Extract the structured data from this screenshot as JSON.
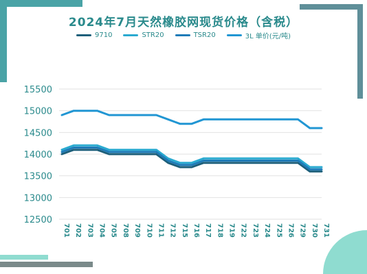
{
  "chart_data": {
    "type": "line",
    "title": "2024年7月天然橡胶网现货价格（含税）",
    "categories": [
      "701",
      "702",
      "703",
      "704",
      "705",
      "708",
      "709",
      "710",
      "711",
      "712",
      "715",
      "716",
      "717",
      "718",
      "719",
      "722",
      "723",
      "724",
      "725",
      "726",
      "729",
      "730",
      "731"
    ],
    "ylim": [
      12500,
      15500
    ],
    "yticks": [
      12500,
      13000,
      13500,
      14000,
      14500,
      15000,
      15500
    ],
    "grid": true,
    "legend_position": "top",
    "series": [
      {
        "name": "9710",
        "color": "#1d5f7a",
        "values": [
          14000,
          14100,
          14100,
          14100,
          14000,
          14000,
          14000,
          14000,
          14000,
          13800,
          13700,
          13700,
          13800,
          13800,
          13800,
          13800,
          13800,
          13800,
          13800,
          13800,
          13800,
          13600,
          13600
        ]
      },
      {
        "name": "STR20",
        "color": "#2aaad0",
        "values": [
          14100,
          14200,
          14200,
          14200,
          14100,
          14100,
          14100,
          14100,
          14100,
          13900,
          13800,
          13800,
          13900,
          13900,
          13900,
          13900,
          13900,
          13900,
          13900,
          13900,
          13900,
          13700,
          13700
        ]
      },
      {
        "name": "TSR20",
        "color": "#1e7bb8",
        "values": [
          14050,
          14150,
          14150,
          14150,
          14050,
          14050,
          14050,
          14050,
          14050,
          13850,
          13750,
          13750,
          13850,
          13850,
          13850,
          13850,
          13850,
          13850,
          13850,
          13850,
          13850,
          13650,
          13650
        ]
      },
      {
        "name": "3L  单价(元/吨)",
        "color": "#2196d3",
        "values": [
          14900,
          15000,
          15000,
          15000,
          14900,
          14900,
          14900,
          14900,
          14900,
          14800,
          14700,
          14700,
          14800,
          14800,
          14800,
          14800,
          14800,
          14800,
          14800,
          14800,
          14800,
          14600,
          14600
        ]
      }
    ]
  },
  "decor": {
    "frame_teal": "#4aa3a6",
    "frame_gray": "#7a7a7a",
    "frame_mint": "#8fdcd0"
  }
}
